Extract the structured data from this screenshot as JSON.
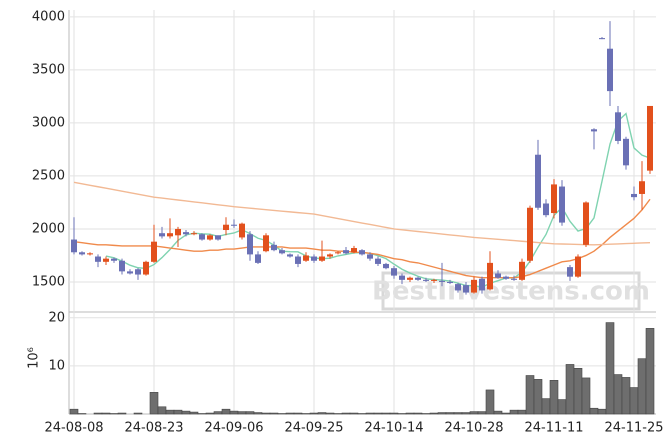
{
  "chart_data": {
    "type": "candlestick",
    "categories": [
      "24-08-08",
      null,
      null,
      null,
      null,
      null,
      null,
      null,
      null,
      null,
      "24-08-23",
      null,
      null,
      null,
      null,
      null,
      null,
      null,
      null,
      null,
      "24-09-06",
      null,
      null,
      null,
      null,
      null,
      null,
      null,
      null,
      null,
      "24-09-25",
      null,
      null,
      null,
      null,
      null,
      null,
      null,
      null,
      null,
      "24-10-14",
      null,
      null,
      null,
      null,
      null,
      null,
      null,
      null,
      null,
      "24-10-28",
      null,
      null,
      null,
      null,
      null,
      null,
      null,
      null,
      null,
      "24-11-11",
      null,
      null,
      null,
      null,
      null,
      null,
      null,
      null,
      null,
      "24-11-25",
      null,
      null
    ],
    "open": [
      1900,
      1780,
      1760,
      1740,
      1690,
      1720,
      1700,
      1600,
      1620,
      1570,
      1690,
      1960,
      1930,
      1940,
      1970,
      1950,
      1950,
      1900,
      1940,
      1990,
      2040,
      1920,
      1950,
      1760,
      1790,
      1850,
      1800,
      1760,
      1740,
      1700,
      1740,
      1700,
      1740,
      1770,
      1800,
      1780,
      1800,
      1760,
      1720,
      1670,
      1630,
      1560,
      1520,
      1540,
      1520,
      1510,
      1510,
      1500,
      1480,
      1470,
      1400,
      1530,
      1430,
      1580,
      1550,
      1530,
      1520,
      1700,
      2700,
      2240,
      2150,
      2400,
      1640,
      1550,
      1850,
      2940,
      3800,
      3700,
      3100,
      2850,
      2330,
      2330,
      2550
    ],
    "high": [
      2110,
      1790,
      1780,
      1760,
      1740,
      1730,
      1720,
      1620,
      1630,
      1700,
      2040,
      2020,
      2100,
      2020,
      1990,
      1980,
      1960,
      1950,
      1940,
      2110,
      2090,
      2060,
      1980,
      1790,
      1960,
      1880,
      1820,
      1770,
      1760,
      1780,
      1760,
      1890,
      1770,
      1790,
      1830,
      1840,
      1810,
      1780,
      1740,
      1680,
      1650,
      1580,
      1550,
      1550,
      1540,
      1530,
      1680,
      1520,
      1490,
      1500,
      1550,
      1550,
      1790,
      1610,
      1560,
      1560,
      1720,
      2220,
      2840,
      2280,
      2470,
      2460,
      1660,
      1760,
      2260,
      2950,
      3810,
      3960,
      3160,
      2870,
      2400,
      2640,
      3160
    ],
    "low": [
      1760,
      1750,
      1750,
      1640,
      1660,
      1680,
      1570,
      1570,
      1520,
      1560,
      1680,
      1910,
      1910,
      1830,
      1930,
      1940,
      1890,
      1890,
      1890,
      1940,
      2010,
      1900,
      1700,
      1670,
      1780,
      1790,
      1760,
      1730,
      1640,
      1690,
      1680,
      1690,
      1720,
      1760,
      1760,
      1770,
      1750,
      1700,
      1650,
      1620,
      1530,
      1480,
      1500,
      1510,
      1500,
      1490,
      1460,
      1480,
      1400,
      1380,
      1390,
      1390,
      1420,
      1530,
      1520,
      1510,
      1510,
      1680,
      2180,
      2110,
      2100,
      2030,
      1510,
      1540,
      1830,
      2750,
      3790,
      3160,
      2800,
      2560,
      2270,
      2180,
      2520
    ],
    "close": [
      1780,
      1760,
      1770,
      1690,
      1720,
      1700,
      1600,
      1580,
      1570,
      1690,
      1880,
      1930,
      1960,
      2000,
      1950,
      1960,
      1900,
      1940,
      1900,
      2040,
      2030,
      2050,
      1760,
      1680,
      1940,
      1800,
      1770,
      1740,
      1670,
      1750,
      1700,
      1740,
      1760,
      1780,
      1770,
      1820,
      1760,
      1720,
      1670,
      1630,
      1560,
      1520,
      1540,
      1520,
      1510,
      1520,
      1500,
      1490,
      1420,
      1400,
      1520,
      1420,
      1680,
      1540,
      1530,
      1520,
      1690,
      2200,
      2200,
      2130,
      2420,
      2060,
      1550,
      1740,
      2250,
      2920,
      3790,
      3300,
      2830,
      2600,
      2300,
      2450,
      3160
    ],
    "up_color": "#e2501c",
    "down_color": "#6a70b5",
    "series": [
      {
        "color": "#7fd3b0",
        "values": [
          null,
          null,
          null,
          null,
          1744,
          1728,
          1696,
          1658,
          1634,
          1628,
          1664,
          1730,
          1806,
          1892,
          1944,
          1960,
          1954,
          1950,
          1930,
          1948,
          1962,
          1992,
          1956,
          1912,
          1892,
          1846,
          1790,
          1786,
          1784,
          1746,
          1726,
          1720,
          1724,
          1746,
          1760,
          1774,
          1778,
          1770,
          1748,
          1720,
          1668,
          1620,
          1584,
          1554,
          1530,
          1522,
          1518,
          1508,
          1488,
          1466,
          1466,
          1450,
          1488,
          1512,
          1538,
          1538,
          1592,
          1696,
          1828,
          1948,
          2128,
          2202,
          2072,
          1980,
          2004,
          2104,
          2450,
          2800,
          3018,
          3088,
          2764,
          2696,
          2668
        ]
      },
      {
        "color": "#f08a4b",
        "values": [
          1880,
          1870,
          1860,
          1850,
          1850,
          1845,
          1840,
          1840,
          1840,
          1840,
          1840,
          1830,
          1820,
          1810,
          1800,
          1790,
          1790,
          1800,
          1800,
          1810,
          1810,
          1820,
          1830,
          1830,
          1830,
          1830,
          1830,
          1820,
          1820,
          1820,
          1810,
          1800,
          1800,
          1790,
          1790,
          1780,
          1780,
          1770,
          1760,
          1740,
          1720,
          1710,
          1690,
          1680,
          1660,
          1640,
          1620,
          1600,
          1580,
          1560,
          1550,
          1540,
          1540,
          1540,
          1540,
          1540,
          1550,
          1570,
          1600,
          1630,
          1660,
          1690,
          1700,
          1720,
          1750,
          1790,
          1850,
          1920,
          1980,
          2040,
          2100,
          2180,
          2280
        ]
      },
      {
        "color": "#f2b994",
        "values": [
          2440,
          2426,
          2412,
          2398,
          2384,
          2370,
          2356,
          2342,
          2328,
          2314,
          2300,
          2291,
          2282,
          2273,
          2264,
          2255,
          2246,
          2237,
          2228,
          2219,
          2210,
          2203,
          2196,
          2189,
          2182,
          2175,
          2168,
          2161,
          2154,
          2147,
          2140,
          2126,
          2112,
          2098,
          2084,
          2070,
          2056,
          2042,
          2028,
          2014,
          2000,
          1992,
          1984,
          1976,
          1968,
          1960,
          1952,
          1944,
          1936,
          1928,
          1920,
          1914,
          1908,
          1902,
          1896,
          1890,
          1884,
          1878,
          1872,
          1866,
          1860,
          1858,
          1856,
          1854,
          1852,
          1850,
          1853,
          1856,
          1859,
          1862,
          1865,
          1868,
          1870
        ]
      }
    ],
    "ylim": [
      1245,
      4065
    ],
    "yticks": [
      1500,
      2000,
      2500,
      3000,
      3500,
      4000
    ],
    "grid": true,
    "watermark": "BestInvestens.com",
    "volume": {
      "type": "bar",
      "color": "#6e6e6e",
      "y_label": "10⁶",
      "ylim": [
        0,
        21.2
      ],
      "yticks": [
        10,
        20
      ],
      "values": [
        1.0,
        0.1,
        0,
        0.2,
        0.2,
        0.1,
        0.2,
        0,
        0.2,
        0,
        4.5,
        1.5,
        0.8,
        0.8,
        0.6,
        0.4,
        0.1,
        0.2,
        0.5,
        1.0,
        0.6,
        0.5,
        0.5,
        0.3,
        0.2,
        0.2,
        0.1,
        0.2,
        0.2,
        0.1,
        0.2,
        0.3,
        0.2,
        0.1,
        0.2,
        0.2,
        0.1,
        0.2,
        0.2,
        0.2,
        0.2,
        0.1,
        0.2,
        0.2,
        0.1,
        0.2,
        0.3,
        0.3,
        0.3,
        0.3,
        0.5,
        0.5,
        5.0,
        0.6,
        0.2,
        0.8,
        0.8,
        8.0,
        7.2,
        3.2,
        7.0,
        3.0,
        10.3,
        9.5,
        7.5,
        1.2,
        1.0,
        19.0,
        8.2,
        7.6,
        5.5,
        11.5,
        17.8
      ]
    }
  }
}
